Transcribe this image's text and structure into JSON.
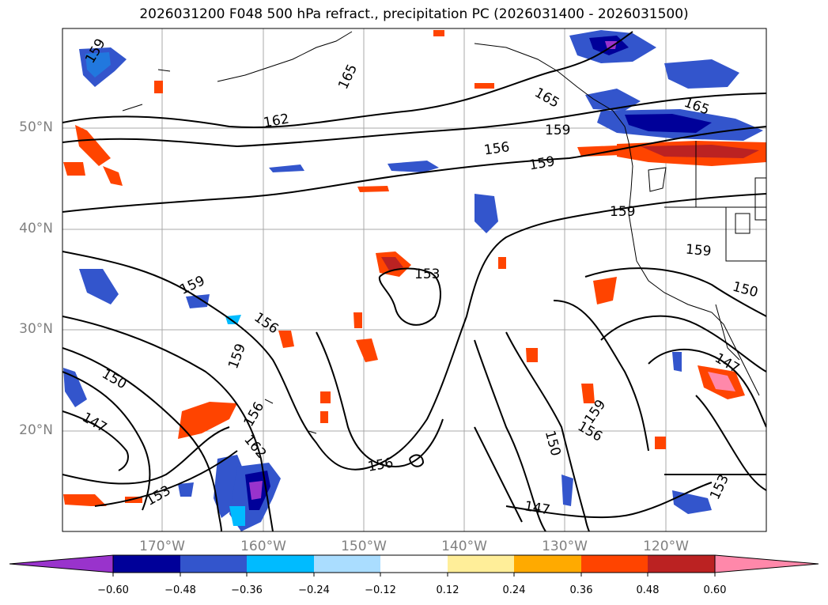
{
  "title": "2026031200 F048 500 hPa refract., precipitation PC (2026031400 - 2026031500)",
  "lat_labels": [
    "50°N",
    "40°N",
    "30°N",
    "20°N"
  ],
  "lon_labels": [
    "170°W",
    "160°W",
    "150°W",
    "140°W",
    "130°W",
    "120°W"
  ],
  "contour_labels": [
    "159",
    "165",
    "165",
    "162",
    "159",
    "156",
    "159",
    "165",
    "159",
    "159",
    "153",
    "150",
    "159",
    "156",
    "159",
    "150",
    "147",
    "156",
    "153",
    "162",
    "156",
    "159",
    "156",
    "150",
    "147",
    "147",
    "153"
  ],
  "colorbar": {
    "ticks": [
      "−0.60",
      "−0.48",
      "−0.36",
      "−0.24",
      "−0.12",
      "0.12",
      "0.24",
      "0.36",
      "0.48",
      "0.60"
    ],
    "colors": [
      "#9933cc",
      "#000099",
      "#3355cc",
      "#00bbff",
      "#aaddff",
      "#ffffff",
      "#ffee99",
      "#ffaa00",
      "#ff4400",
      "#bb2222",
      "#ff88aa"
    ]
  }
}
